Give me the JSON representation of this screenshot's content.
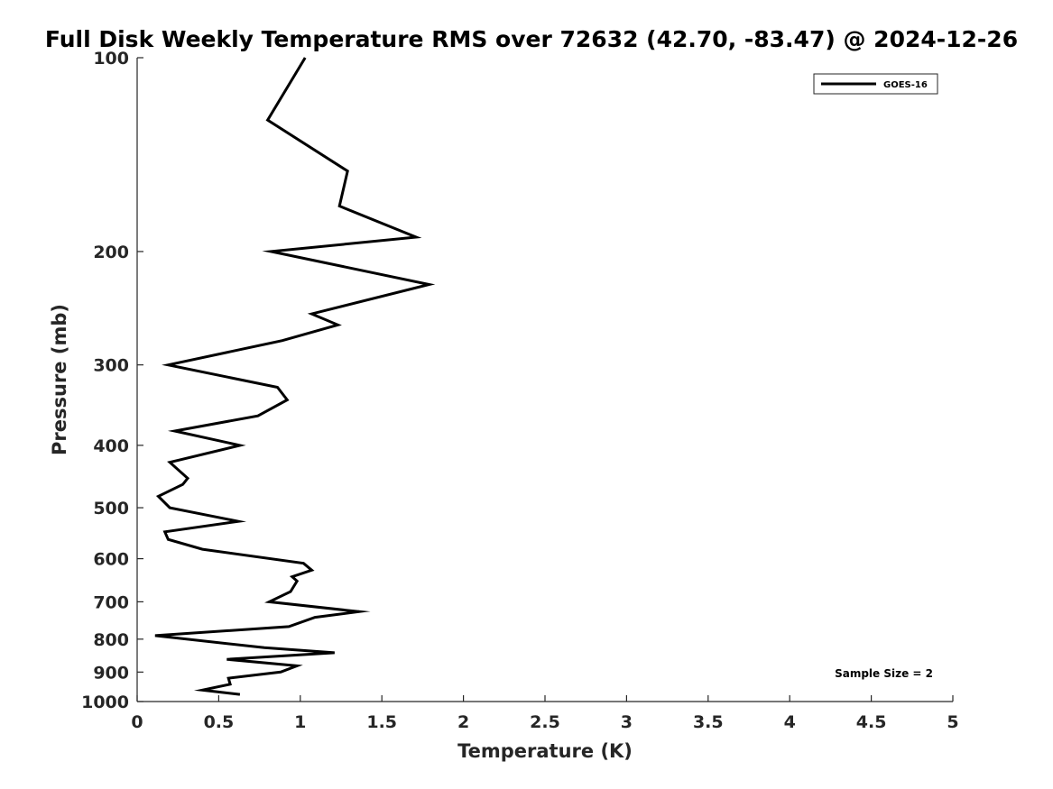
{
  "chart_data": {
    "type": "line",
    "title": "Full Disk Weekly Temperature RMS over 72632 (42.70, -83.47) @ 2024-12-26",
    "xlabel": "Temperature (K)",
    "ylabel": "Pressure (mb)",
    "xlim": [
      0,
      5
    ],
    "ylim": [
      100,
      1000
    ],
    "yscale": "log",
    "yreversed": true,
    "xticks": [
      "0",
      "0.5",
      "1",
      "1.5",
      "2",
      "2.5",
      "3",
      "3.5",
      "4",
      "4.5",
      "5"
    ],
    "xtick_values": [
      0,
      0.5,
      1,
      1.5,
      2,
      2.5,
      3,
      3.5,
      4,
      4.5,
      5
    ],
    "yticks": [
      "100",
      "200",
      "300",
      "400",
      "500",
      "600",
      "700",
      "800",
      "900",
      "1000"
    ],
    "ytick_values": [
      100,
      200,
      300,
      400,
      500,
      600,
      700,
      800,
      900,
      1000
    ],
    "grid": false,
    "legend_position": "top-right",
    "series": [
      {
        "name": "GOES-16",
        "color": "#000000",
        "points": [
          [
            1.03,
            100
          ],
          [
            0.8,
            125
          ],
          [
            1.29,
            150
          ],
          [
            1.24,
            170
          ],
          [
            1.71,
            190
          ],
          [
            0.82,
            200
          ],
          [
            1.79,
            225
          ],
          [
            1.07,
            250
          ],
          [
            1.23,
            260
          ],
          [
            0.89,
            275
          ],
          [
            0.19,
            300
          ],
          [
            0.86,
            325
          ],
          [
            0.92,
            340
          ],
          [
            0.74,
            360
          ],
          [
            0.23,
            380
          ],
          [
            0.63,
            400
          ],
          [
            0.2,
            425
          ],
          [
            0.31,
            450
          ],
          [
            0.28,
            460
          ],
          [
            0.13,
            480
          ],
          [
            0.2,
            500
          ],
          [
            0.62,
            525
          ],
          [
            0.17,
            545
          ],
          [
            0.19,
            560
          ],
          [
            0.4,
            580
          ],
          [
            1.02,
            610
          ],
          [
            1.07,
            625
          ],
          [
            0.95,
            640
          ],
          [
            0.98,
            650
          ],
          [
            0.94,
            675
          ],
          [
            0.81,
            700
          ],
          [
            1.36,
            725
          ],
          [
            1.09,
            740
          ],
          [
            0.93,
            765
          ],
          [
            0.11,
            790
          ],
          [
            0.78,
            825
          ],
          [
            1.21,
            840
          ],
          [
            0.55,
            860
          ],
          [
            0.98,
            880
          ],
          [
            0.88,
            900
          ],
          [
            0.56,
            920
          ],
          [
            0.57,
            940
          ],
          [
            0.4,
            960
          ],
          [
            0.63,
            975
          ]
        ]
      }
    ],
    "annotations": [
      "Sample Size = 2"
    ]
  }
}
